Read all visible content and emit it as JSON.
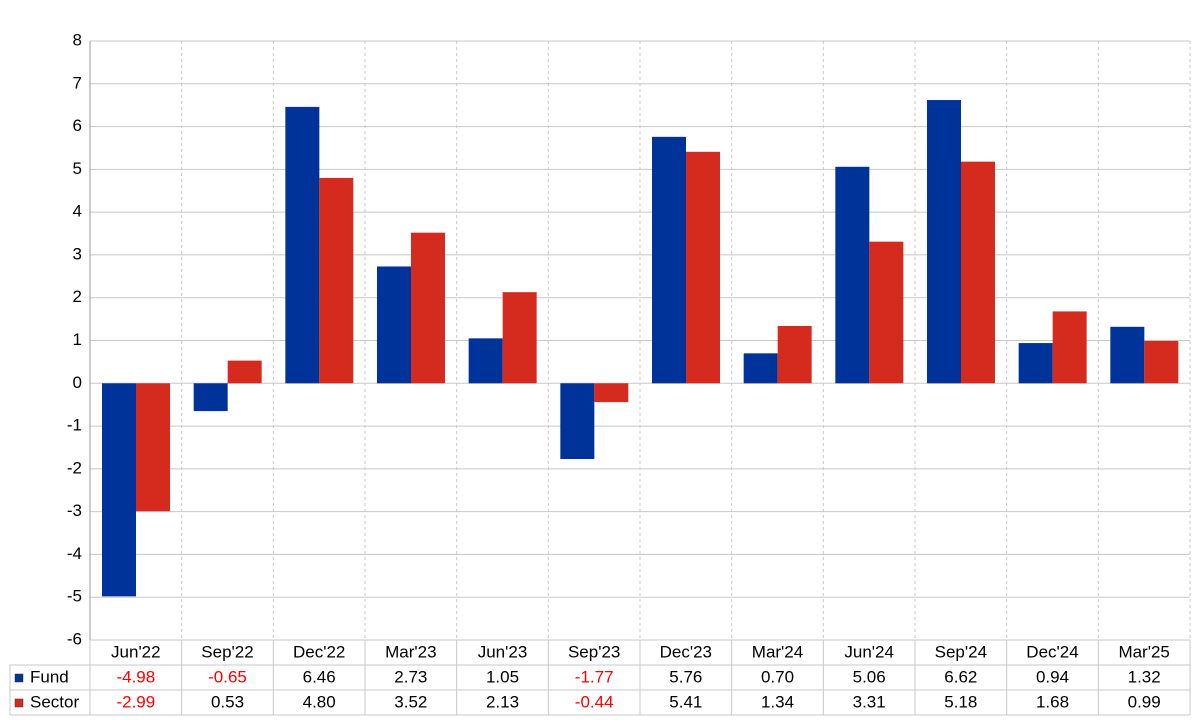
{
  "chart_data": {
    "type": "bar",
    "categories": [
      "Jun'22",
      "Sep'22",
      "Dec'22",
      "Mar'23",
      "Jun'23",
      "Sep'23",
      "Dec'23",
      "Mar'24",
      "Jun'24",
      "Sep'24",
      "Dec'24",
      "Mar'25"
    ],
    "series": [
      {
        "name": "Fund",
        "color": "#003399",
        "values": [
          -4.98,
          -0.65,
          6.46,
          2.73,
          1.05,
          -1.77,
          5.76,
          0.7,
          5.06,
          6.62,
          0.94,
          1.32
        ],
        "value_labels": [
          "-4.98",
          "-0.65",
          "6.46",
          "2.73",
          "1.05",
          "-1.77",
          "5.76",
          "0.70",
          "5.06",
          "6.62",
          "0.94",
          "1.32"
        ]
      },
      {
        "name": "Sector",
        "color": "#d52b1e",
        "values": [
          -2.99,
          0.53,
          4.8,
          3.52,
          2.13,
          -0.44,
          5.41,
          1.34,
          3.31,
          5.18,
          1.68,
          0.99
        ],
        "value_labels": [
          "-2.99",
          "0.53",
          "4.80",
          "3.52",
          "2.13",
          "-0.44",
          "5.41",
          "1.34",
          "3.31",
          "5.18",
          "1.68",
          "0.99"
        ]
      }
    ],
    "ylim": [
      -6,
      8
    ],
    "yticks": [
      -6,
      -5,
      -4,
      -3,
      -2,
      -1,
      0,
      1,
      2,
      3,
      4,
      5,
      6,
      7,
      8
    ],
    "grid": true,
    "negative_label_color": "#ff0000"
  }
}
